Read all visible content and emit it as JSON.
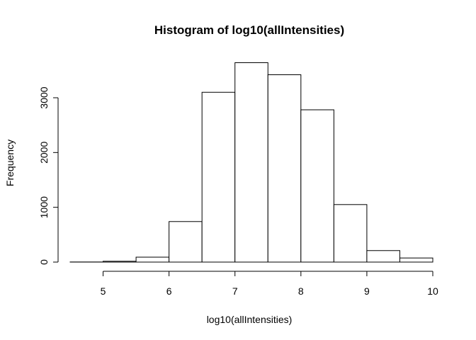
{
  "chart_data": {
    "type": "histogram",
    "title": "Histogram of log10(allIntensities)",
    "xlabel": "log10(allIntensities)",
    "ylabel": "Frequency",
    "bins": [
      {
        "x0": 4.5,
        "x1": 5.0,
        "count": 2
      },
      {
        "x0": 5.0,
        "x1": 5.5,
        "count": 15
      },
      {
        "x0": 5.5,
        "x1": 6.0,
        "count": 90
      },
      {
        "x0": 6.0,
        "x1": 6.5,
        "count": 740
      },
      {
        "x0": 6.5,
        "x1": 7.0,
        "count": 3100
      },
      {
        "x0": 7.0,
        "x1": 7.5,
        "count": 3640
      },
      {
        "x0": 7.5,
        "x1": 8.0,
        "count": 3420
      },
      {
        "x0": 8.0,
        "x1": 8.5,
        "count": 2780
      },
      {
        "x0": 8.5,
        "x1": 9.0,
        "count": 1050
      },
      {
        "x0": 9.0,
        "x1": 9.5,
        "count": 210
      },
      {
        "x0": 9.5,
        "x1": 10.0,
        "count": 75
      }
    ],
    "x_ticks": [
      5,
      6,
      7,
      8,
      9,
      10
    ],
    "y_ticks": [
      0,
      1000,
      2000,
      3000
    ],
    "xlim": [
      4.5,
      10
    ],
    "ylim": [
      0,
      3700
    ],
    "grid": false,
    "legend": "none"
  }
}
